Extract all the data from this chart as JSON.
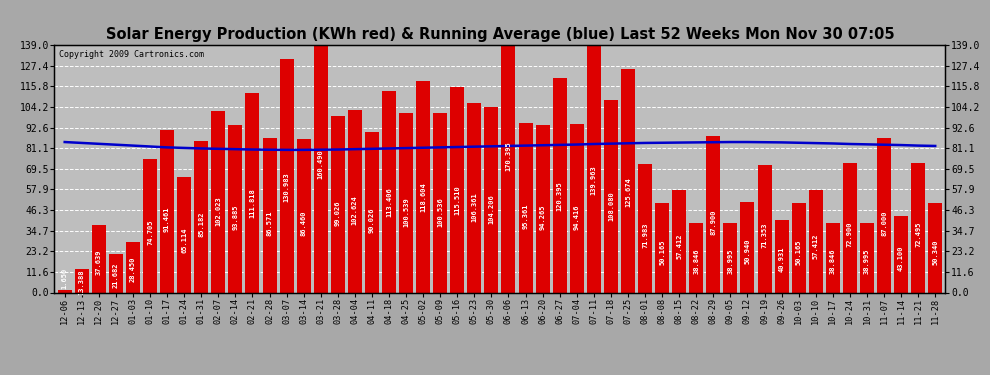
{
  "title": "Solar Energy Production (KWh red) & Running Average (blue) Last 52 Weeks Mon Nov 30 07:05",
  "copyright": "Copyright 2009 Cartronics.com",
  "bar_color": "#dd0000",
  "avg_color": "#0000cc",
  "bg_color": "#b0b0b0",
  "plot_bg_color": "#c0c0c0",
  "grid_color": "white",
  "categories": [
    "12-06",
    "12-13",
    "12-20",
    "12-27",
    "01-03",
    "01-10",
    "01-17",
    "01-24",
    "01-31",
    "02-07",
    "02-14",
    "02-21",
    "02-28",
    "03-07",
    "03-14",
    "03-21",
    "03-28",
    "04-04",
    "04-11",
    "04-18",
    "04-25",
    "05-02",
    "05-09",
    "05-16",
    "05-23",
    "05-30",
    "06-06",
    "06-13",
    "06-20",
    "06-27",
    "07-04",
    "07-11",
    "07-18",
    "07-25",
    "08-01",
    "08-08",
    "08-15",
    "08-22",
    "08-29",
    "09-05",
    "09-12",
    "09-19",
    "09-26",
    "10-03",
    "10-10",
    "10-17",
    "10-24",
    "10-31",
    "11-07",
    "11-14",
    "11-21",
    "11-28"
  ],
  "values": [
    1.65,
    13.388,
    37.639,
    21.682,
    28.45,
    74.705,
    91.461,
    65.114,
    85.182,
    102.023,
    93.885,
    111.818,
    86.571,
    130.983,
    86.46,
    160.49,
    99.026,
    102.624,
    90.026,
    113.406,
    100.539,
    118.604,
    100.536,
    115.51,
    106.361,
    104.206,
    170.395,
    95.361,
    94.265,
    120.395,
    94.416,
    139.963,
    108.08,
    125.674,
    71.983,
    50.165,
    57.412,
    38.846,
    87.9,
    38.995,
    50.94,
    71.353,
    40.931,
    50.165,
    57.412,
    38.846,
    72.9,
    38.995,
    87.0,
    43.1,
    72.495,
    50.34
  ],
  "running_avg": [
    84.5,
    84.0,
    83.5,
    83.0,
    82.5,
    82.0,
    81.5,
    81.2,
    80.9,
    80.7,
    80.5,
    80.3,
    80.2,
    80.1,
    80.1,
    80.2,
    80.3,
    80.5,
    80.7,
    80.9,
    81.1,
    81.3,
    81.5,
    81.7,
    81.9,
    82.1,
    82.3,
    82.5,
    82.7,
    82.9,
    83.1,
    83.4,
    83.6,
    83.8,
    84.0,
    84.1,
    84.2,
    84.3,
    84.4,
    84.5,
    84.5,
    84.4,
    84.3,
    84.1,
    83.9,
    83.7,
    83.4,
    83.2,
    83.0,
    82.8,
    82.5,
    82.3
  ],
  "yticks": [
    0.0,
    11.6,
    23.2,
    34.7,
    46.3,
    57.9,
    69.5,
    81.1,
    92.6,
    104.2,
    115.8,
    127.4,
    139.0
  ],
  "ymax": 139.0,
  "ymin": 0.0,
  "title_fontsize": 10.5,
  "bar_value_fontsize": 5.0,
  "tick_fontsize": 7.0,
  "xlabel_fontsize": 6.2
}
